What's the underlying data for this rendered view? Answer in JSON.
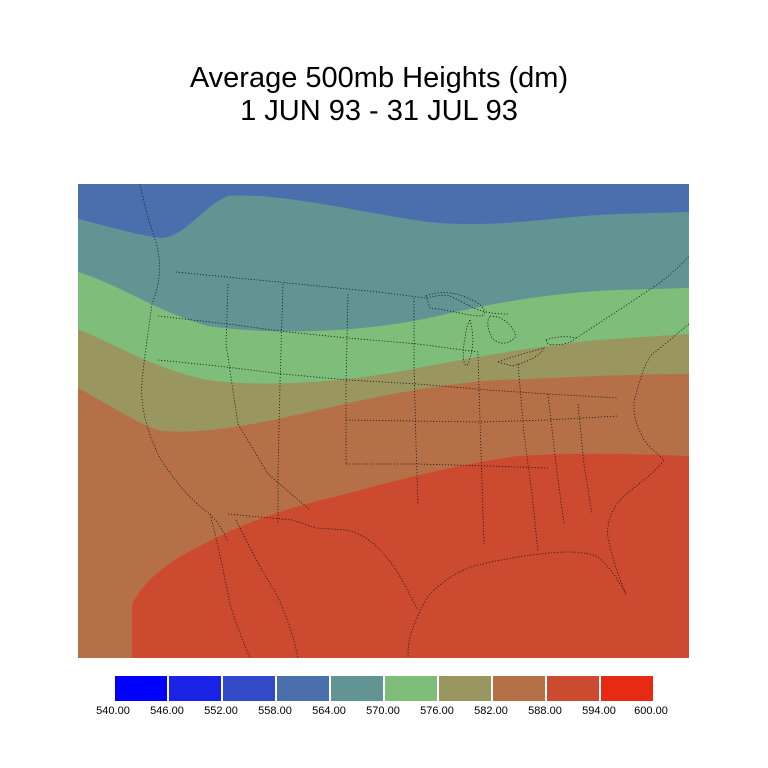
{
  "title": {
    "line1": "Average 500mb Heights (dm)",
    "line2": "1 JUN 93 - 31 JUL 93"
  },
  "legend": {
    "levels": [
      "540.00",
      "546.00",
      "552.00",
      "558.00",
      "564.00",
      "570.00",
      "576.00",
      "582.00",
      "588.00",
      "594.00",
      "600.00"
    ],
    "colors": [
      "#0000ff",
      "#1a22e6",
      "#3349c8",
      "#4a6fac",
      "#629494",
      "#7ebe7a",
      "#9a9660",
      "#b57048",
      "#cc4a2f",
      "#e62a14"
    ]
  },
  "map": {
    "region": "Continental United States",
    "band_colors": {
      "558-564": "#4a6fac",
      "564-570": "#629494",
      "570-576": "#7ebe7a",
      "576-582": "#9a9660",
      "582-588": "#b57048",
      "588-594": "#cc4a2f"
    }
  }
}
